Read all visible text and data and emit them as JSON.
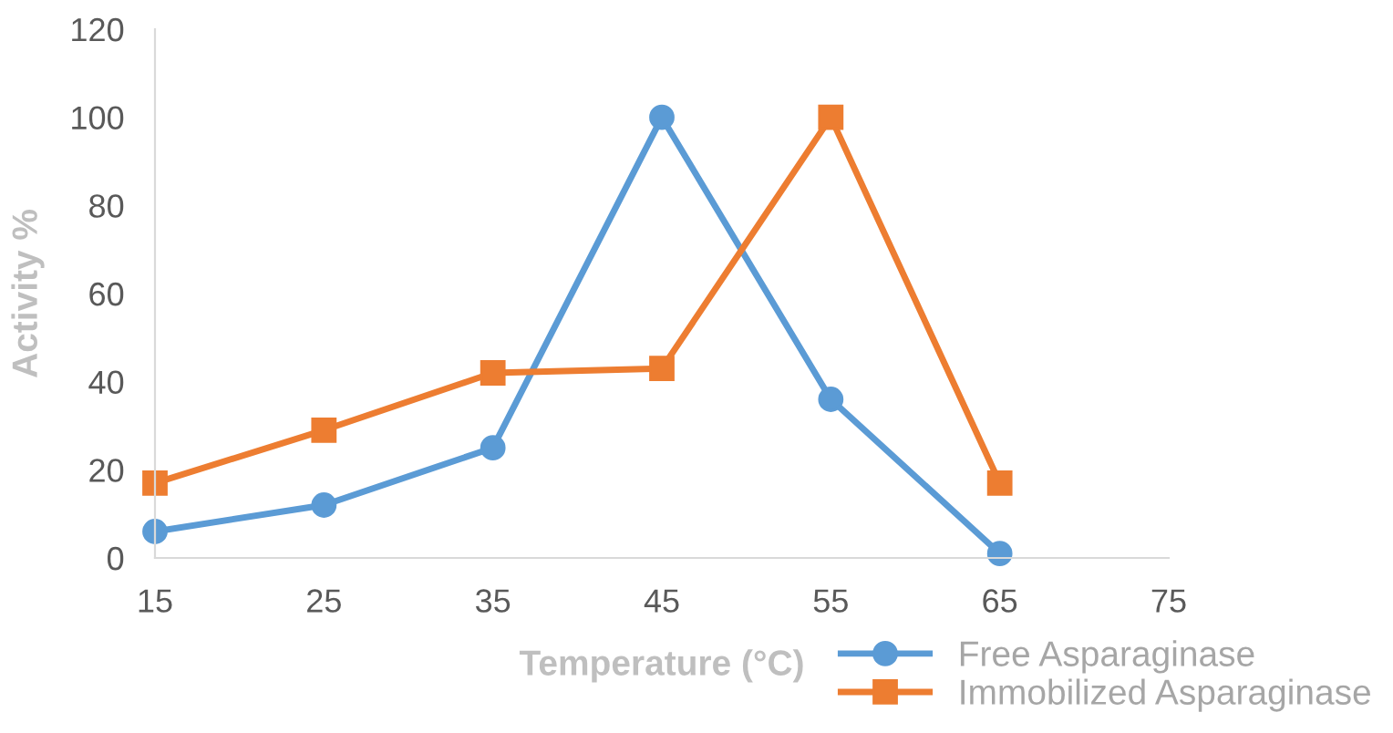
{
  "chart_data": {
    "type": "line",
    "xlabel": "Temperature (°C)",
    "ylabel": "Activity %",
    "x": [
      15,
      25,
      35,
      45,
      55,
      65
    ],
    "series": [
      {
        "name": "Free Asparaginase",
        "color": "#5b9bd5",
        "marker": "circle",
        "values": [
          6,
          12,
          25,
          100,
          36,
          1
        ]
      },
      {
        "name": "Immobilized Asparaginase",
        "color": "#ed7d31",
        "marker": "square",
        "values": [
          17,
          29,
          42,
          43,
          100,
          17
        ]
      }
    ],
    "xlim": [
      15,
      75
    ],
    "xticks": [
      15,
      25,
      35,
      45,
      55,
      65,
      75
    ],
    "ylim": [
      0,
      120
    ],
    "yticks": [
      0,
      20,
      40,
      60,
      80,
      100,
      120
    ],
    "grid": false,
    "legend": "bottom right",
    "line_style": "solid"
  }
}
